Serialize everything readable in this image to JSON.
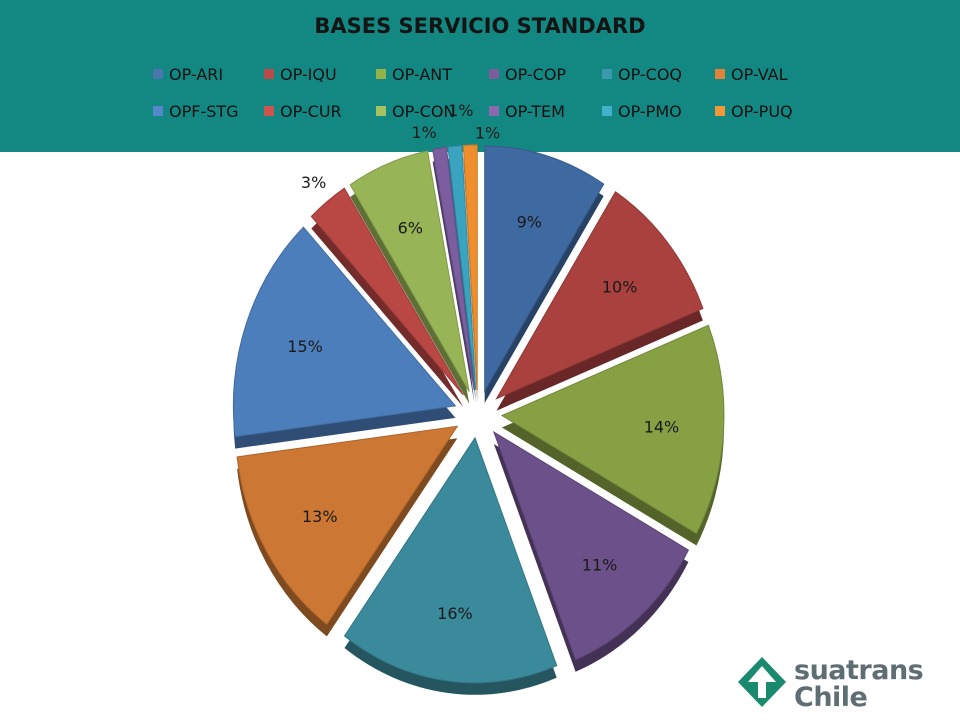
{
  "header": {
    "title": "BASES SERVICIO STANDARD",
    "background": "#138883"
  },
  "legend": [
    {
      "label": "OP-ARI",
      "color": "#4a76b0"
    },
    {
      "label": "OP-IQU",
      "color": "#b84a48"
    },
    {
      "label": "OP-ANT",
      "color": "#93b24c"
    },
    {
      "label": "OP-COP",
      "color": "#7a5d9a"
    },
    {
      "label": "OP-COQ",
      "color": "#3c98aa"
    },
    {
      "label": "OP-VAL",
      "color": "#e0843a"
    },
    {
      "label": "OPF-STG",
      "color": "#5588c8"
    },
    {
      "label": "OP-CUR",
      "color": "#cc5350"
    },
    {
      "label": "OP-CON",
      "color": "#a4c260"
    },
    {
      "label": "OP-TEM",
      "color": "#8a6bb0"
    },
    {
      "label": "OP-PMO",
      "color": "#44b1cc"
    },
    {
      "label": "OP-PUQ",
      "color": "#f2983a"
    }
  ],
  "chart_data": {
    "type": "pie",
    "title": "BASES SERVICIO STANDARD",
    "legend_position": "top",
    "exploded": true,
    "three_d": true,
    "slices": [
      {
        "label": "OP-ARI",
        "value": 9,
        "display": "9%",
        "color": "#3f6aa1"
      },
      {
        "label": "OP-IQU",
        "value": 10,
        "display": "10%",
        "color": "#a9413f"
      },
      {
        "label": "OP-ANT",
        "value": 14,
        "display": "14%",
        "color": "#86a043"
      },
      {
        "label": "OP-COP",
        "value": 11,
        "display": "11%",
        "color": "#6c5089"
      },
      {
        "label": "OP-COQ",
        "value": 16,
        "display": "16%",
        "color": "#3b8a9b"
      },
      {
        "label": "OP-VAL",
        "value": 13,
        "display": "13%",
        "color": "#cc7733"
      },
      {
        "label": "OPF-STG",
        "value": 15,
        "display": "15%",
        "color": "#4d7ebc"
      },
      {
        "label": "OP-CUR",
        "value": 3,
        "display": "3%",
        "color": "#b94744"
      },
      {
        "label": "OP-CON",
        "value": 6,
        "display": "6%",
        "color": "#97b556"
      },
      {
        "label": "OP-TEM",
        "value": 1,
        "display": "1%",
        "color": "#7c5ea0"
      },
      {
        "label": "OP-PMO",
        "value": 1,
        "display": "1%",
        "color": "#3aa3c0"
      },
      {
        "label": "OP-PUQ",
        "value": 1,
        "display": "1%",
        "color": "#ef8e2c"
      }
    ]
  },
  "logo": {
    "line1": "suatrans",
    "line2": "Chile",
    "color": "#1a8a6e",
    "text_color": "#5f6e73"
  }
}
